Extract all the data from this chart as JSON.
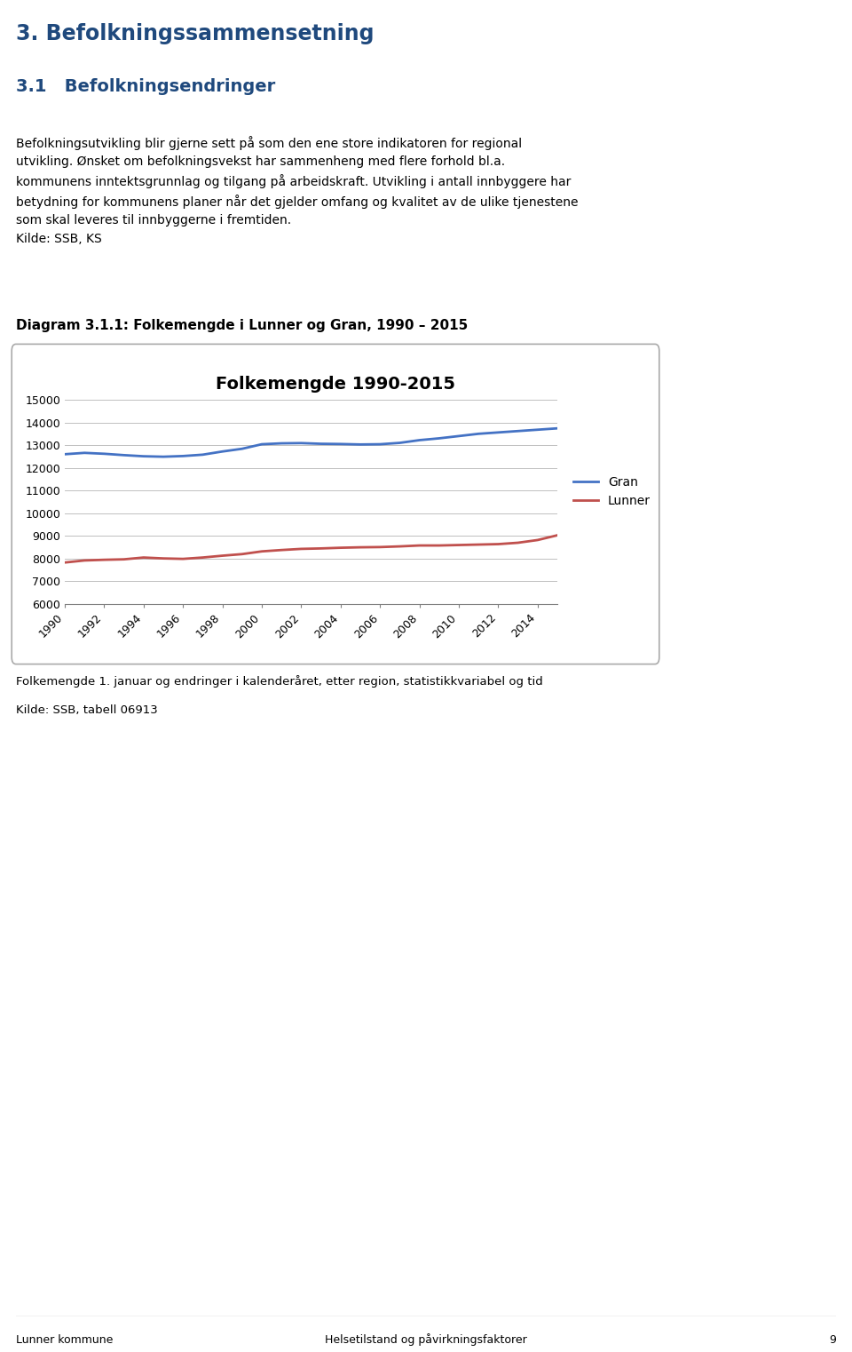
{
  "title": "Folkemengde 1990-2015",
  "heading1": "3. Befolkningssammensetning",
  "heading2": "3.1   Befolkningsendringer",
  "body_text": "Befolkningsutvikling blir gjerne sett på som den ene store indikatoren for regional\nutvikling. Ønsket om befolkningsvekst har sammenheng med flere forhold bl.a.\nkommunens inntektsgrunnlag og tilgang på arbeidskraft. Utvikling i antall innbyggere har\nbetydning for kommunens planer når det gjelder omfang og kvalitet av de ulike tjenestene\nsom skal leveres til innbyggerne i fremtiden.\nKilde: SSB, KS",
  "diagram_label": "Diagram 3.1.1: Folkemengde i Lunner og Gran, 1990 – 2015",
  "footnote_line1": "Folkemengde 1. januar og endringer i kalenderåret, etter region, statistikkvariabel og tid",
  "footnote_line2": "Kilde: SSB, tabell 06913",
  "footer_left": "Lunner kommune",
  "footer_right": "Helsetilstand og påvirkningsfaktorer",
  "footer_page": "9",
  "years": [
    1990,
    1991,
    1992,
    1993,
    1994,
    1995,
    1996,
    1997,
    1998,
    1999,
    2000,
    2001,
    2002,
    2003,
    2004,
    2005,
    2006,
    2007,
    2008,
    2009,
    2010,
    2011,
    2012,
    2013,
    2014,
    2015
  ],
  "gran": [
    12600,
    12660,
    12620,
    12560,
    12510,
    12490,
    12520,
    12580,
    12720,
    12840,
    13040,
    13080,
    13090,
    13060,
    13050,
    13030,
    13040,
    13100,
    13220,
    13300,
    13400,
    13500,
    13560,
    13620,
    13680,
    13740
  ],
  "lunner": [
    7830,
    7920,
    7950,
    7970,
    8050,
    8010,
    7990,
    8050,
    8130,
    8200,
    8320,
    8380,
    8430,
    8450,
    8480,
    8500,
    8510,
    8540,
    8580,
    8580,
    8600,
    8620,
    8640,
    8700,
    8820,
    9030
  ],
  "gran_color": "#4472C4",
  "lunner_color": "#C0504D",
  "ylim": [
    6000,
    15000
  ],
  "yticks": [
    6000,
    7000,
    8000,
    9000,
    10000,
    11000,
    12000,
    13000,
    14000,
    15000
  ],
  "xtick_years": [
    1990,
    1992,
    1994,
    1996,
    1998,
    2000,
    2002,
    2004,
    2006,
    2008,
    2010,
    2012,
    2014
  ],
  "heading1_color": "#1F497D",
  "heading2_color": "#1F497D",
  "body_bg": "#F0F0F0",
  "page_bg": "#FFFFFF"
}
